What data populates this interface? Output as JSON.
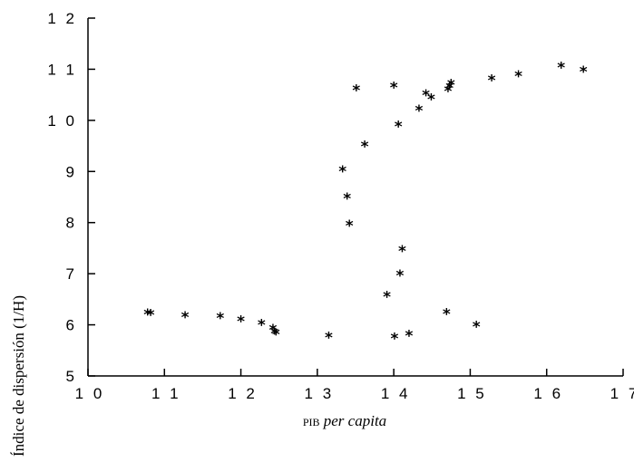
{
  "chart_data": {
    "type": "scatter",
    "xlabel_prefix": "PIB",
    "xlabel_italic": "per capita",
    "ylabel": "Índice de dispersión (1/H)",
    "xlim": [
      10,
      17
    ],
    "ylim": [
      5,
      12
    ],
    "x_ticks": [
      "1 0",
      "1 1",
      "1 2",
      "1 3",
      "1 4",
      "1 5",
      "1 6",
      "1 7"
    ],
    "y_ticks": [
      "5",
      "6",
      "7",
      "8",
      "9",
      "1 0",
      "1 1",
      "1 2"
    ],
    "grid": false,
    "marker": "*",
    "points": [
      {
        "x": 10.78,
        "y": 6.24
      },
      {
        "x": 10.82,
        "y": 6.23
      },
      {
        "x": 11.27,
        "y": 6.19
      },
      {
        "x": 11.73,
        "y": 6.17
      },
      {
        "x": 12.0,
        "y": 6.11
      },
      {
        "x": 12.27,
        "y": 6.04
      },
      {
        "x": 12.42,
        "y": 5.94
      },
      {
        "x": 12.44,
        "y": 5.87
      },
      {
        "x": 12.46,
        "y": 5.85
      },
      {
        "x": 13.15,
        "y": 5.79
      },
      {
        "x": 13.33,
        "y": 9.04
      },
      {
        "x": 13.39,
        "y": 8.51
      },
      {
        "x": 13.42,
        "y": 7.98
      },
      {
        "x": 13.51,
        "y": 10.63
      },
      {
        "x": 13.62,
        "y": 9.53
      },
      {
        "x": 13.91,
        "y": 6.59
      },
      {
        "x": 14.0,
        "y": 10.68
      },
      {
        "x": 14.01,
        "y": 5.77
      },
      {
        "x": 14.06,
        "y": 9.92
      },
      {
        "x": 14.08,
        "y": 7.0
      },
      {
        "x": 14.11,
        "y": 7.48
      },
      {
        "x": 14.2,
        "y": 5.82
      },
      {
        "x": 14.33,
        "y": 10.23
      },
      {
        "x": 14.42,
        "y": 10.53
      },
      {
        "x": 14.49,
        "y": 10.45
      },
      {
        "x": 14.69,
        "y": 6.25
      },
      {
        "x": 14.71,
        "y": 10.61
      },
      {
        "x": 14.73,
        "y": 10.67
      },
      {
        "x": 14.75,
        "y": 10.73
      },
      {
        "x": 15.08,
        "y": 6.0
      },
      {
        "x": 15.28,
        "y": 10.82
      },
      {
        "x": 15.63,
        "y": 10.9
      },
      {
        "x": 16.19,
        "y": 11.07
      },
      {
        "x": 16.48,
        "y": 10.99
      }
    ]
  }
}
